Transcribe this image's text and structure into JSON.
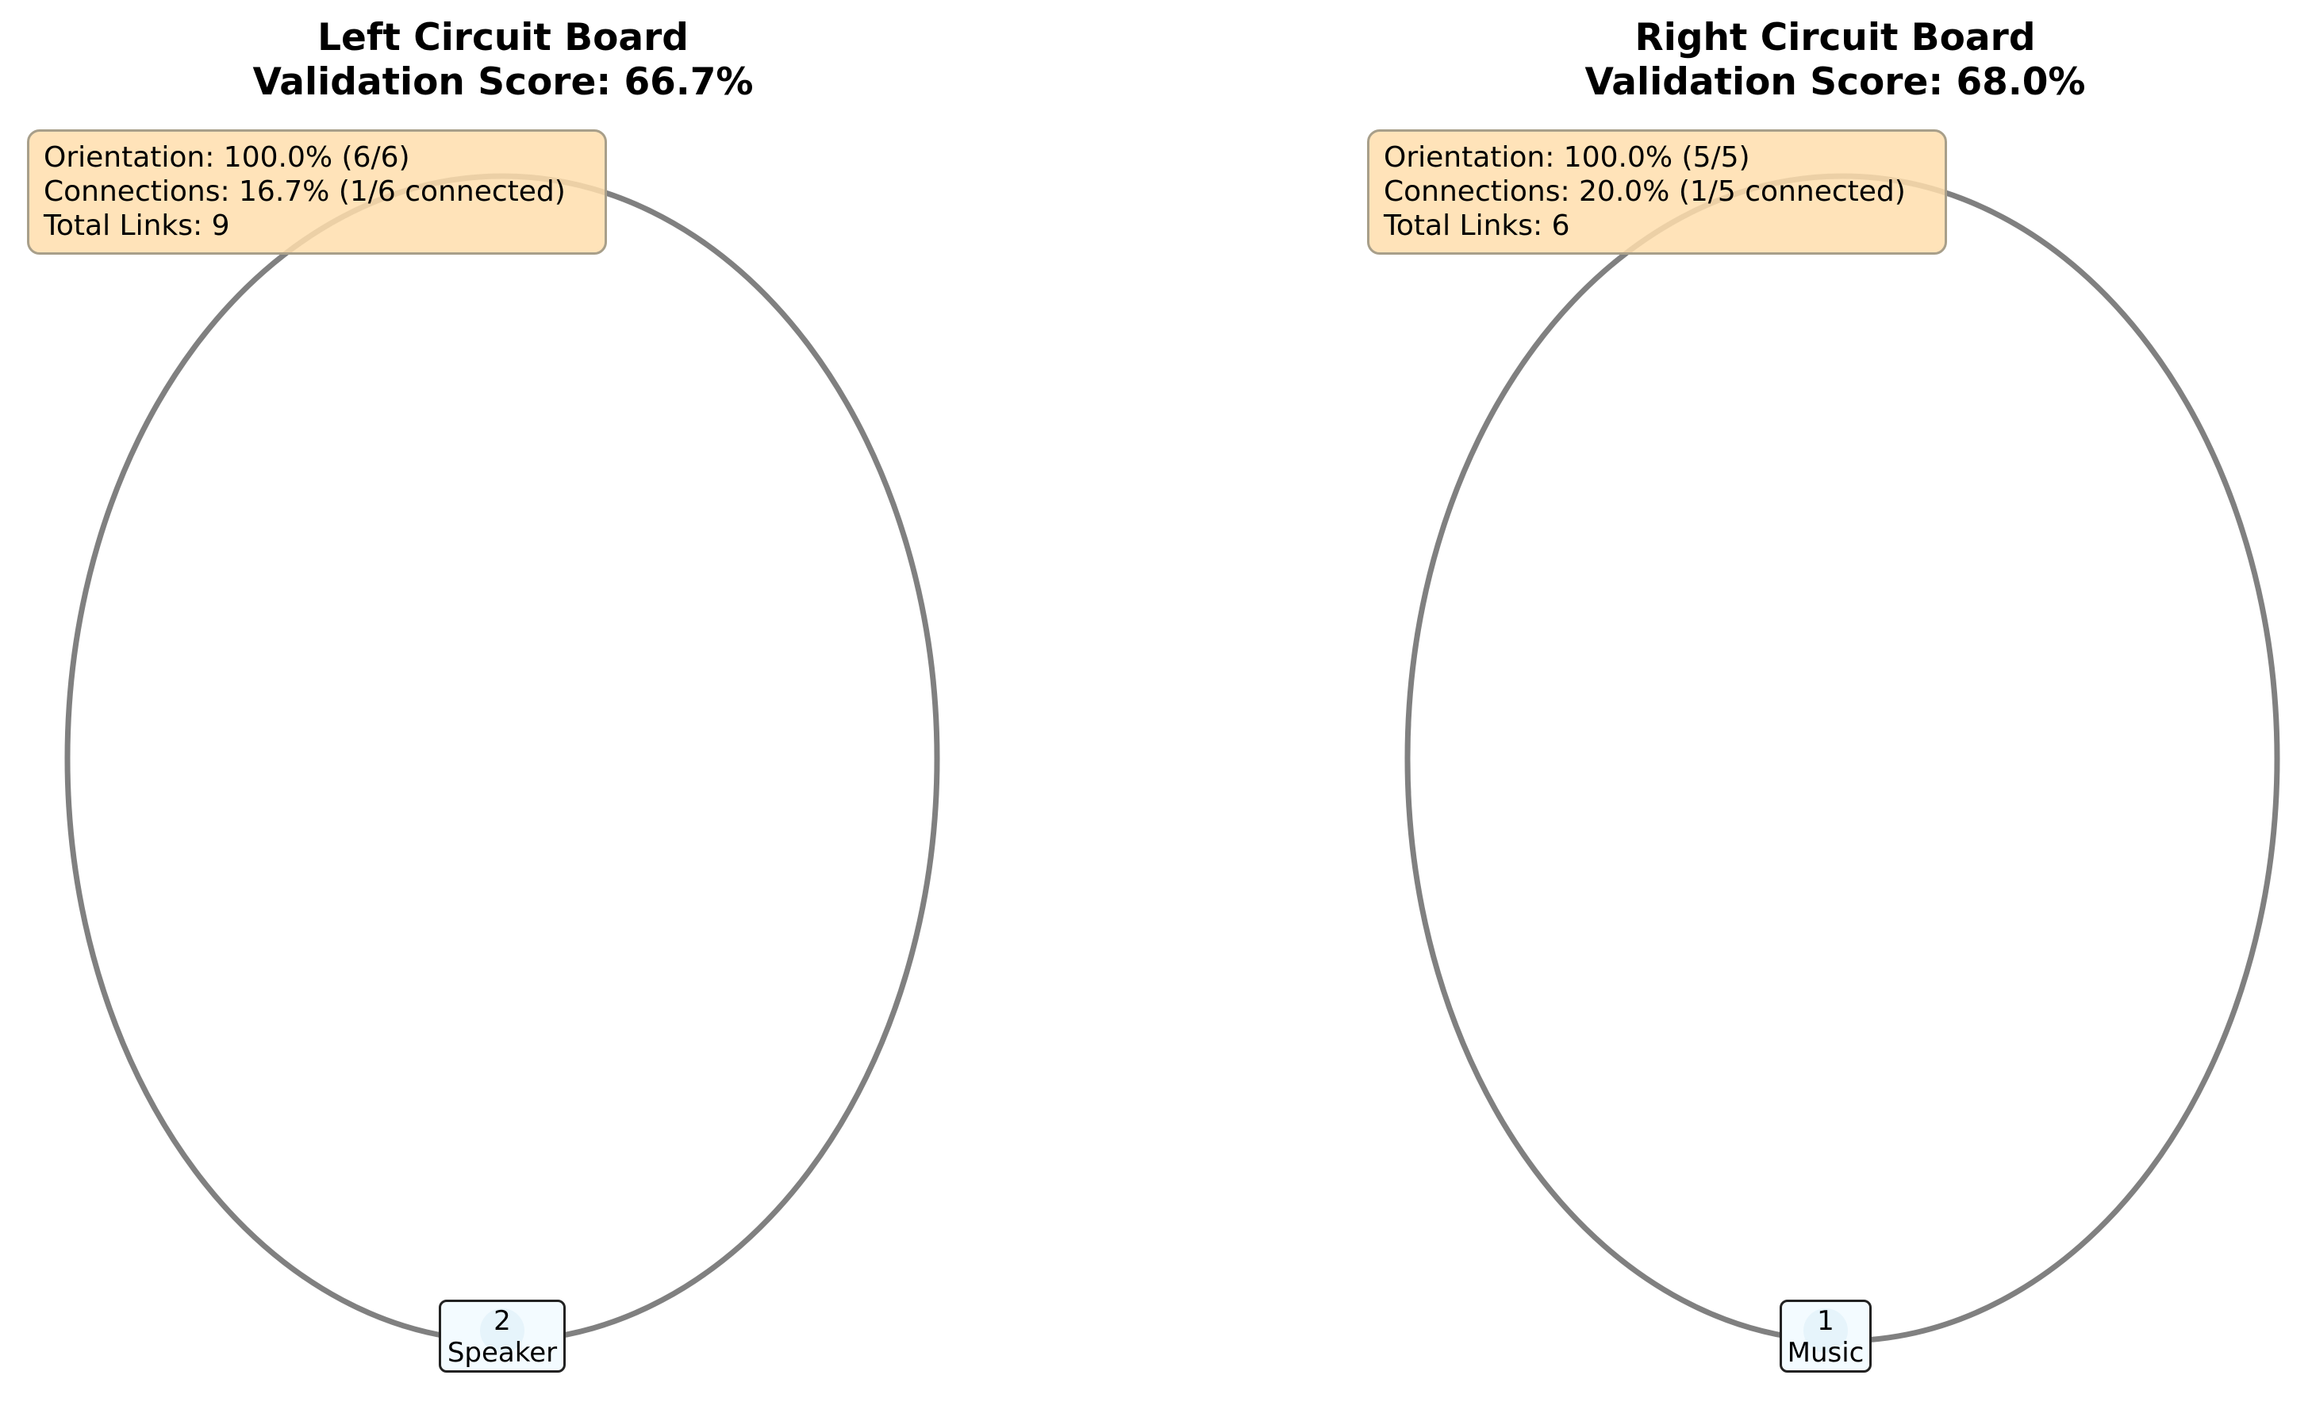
{
  "panels": [
    {
      "title_line1": "Left Circuit Board",
      "title_line2": "Validation Score: 66.7%",
      "stats": {
        "orientation": "Orientation: 100.0% (6/6)",
        "connections": "Connections: 16.7% (1/6 connected)",
        "total_links": "Total Links: 9"
      },
      "node": {
        "id": "2",
        "label": "Speaker"
      }
    },
    {
      "title_line1": "Right Circuit Board",
      "title_line2": "Validation Score: 68.0%",
      "stats": {
        "orientation": "Orientation: 100.0% (5/5)",
        "connections": "Connections: 20.0% (1/5 connected)",
        "total_links": "Total Links: 6"
      },
      "node": {
        "id": "1",
        "label": "Music"
      }
    }
  ],
  "colors": {
    "loop": "#808080",
    "stats_box": "#ffdead",
    "node_fill": "#f3fbff",
    "node_border": "#222222"
  }
}
